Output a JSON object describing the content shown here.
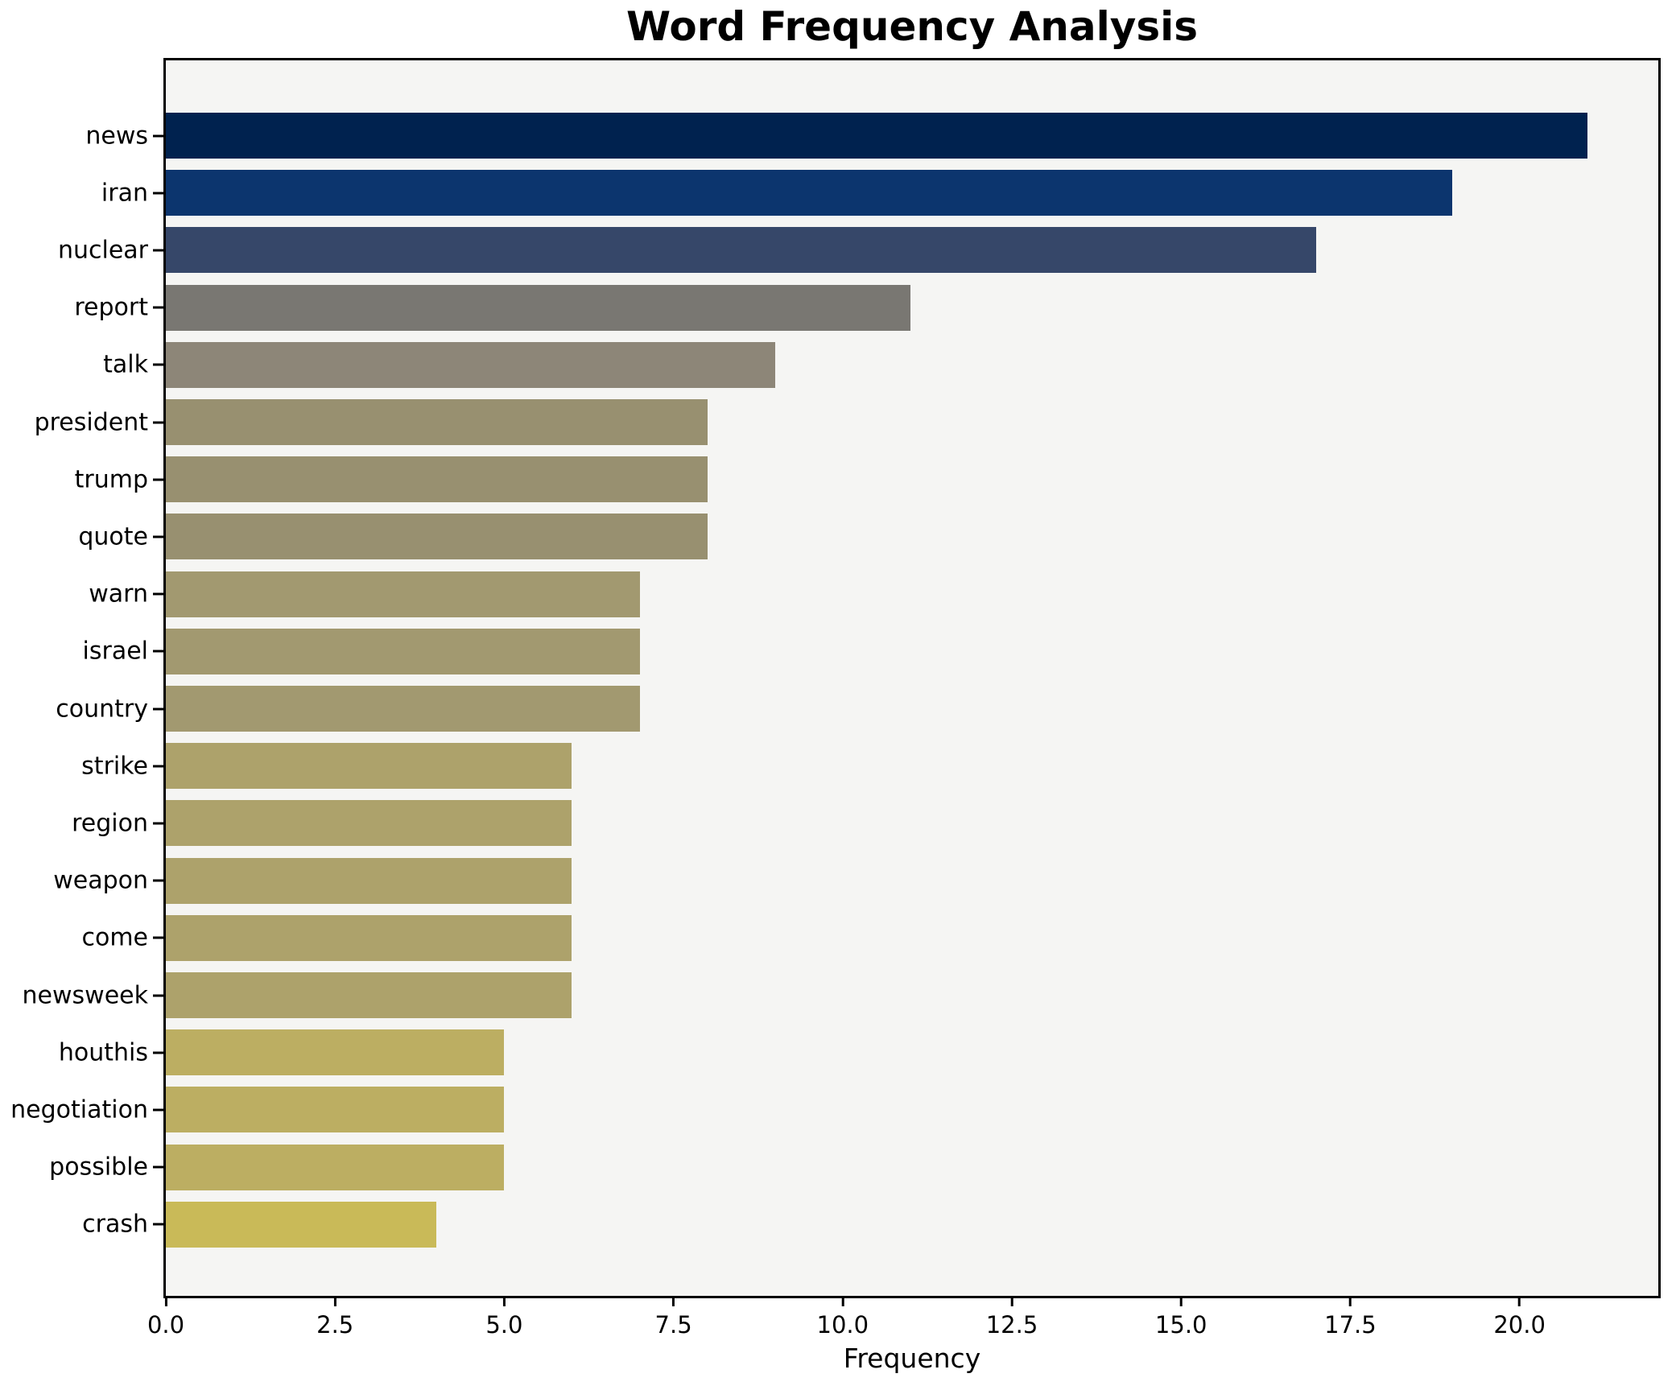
{
  "chart_data": {
    "type": "bar",
    "orientation": "horizontal",
    "title": "Word Frequency Analysis",
    "xlabel": "Frequency",
    "ylabel": "",
    "grid": false,
    "legend": false,
    "figure_bg": "#ffffff",
    "plot_bg": "#f5f5f3",
    "spine_color": "#000000",
    "text_color": "#000000",
    "xlim": [
      0,
      22.05
    ],
    "x_ticks": [
      {
        "label": "0.0",
        "value": 0
      },
      {
        "label": "2.5",
        "value": 2.5
      },
      {
        "label": "5.0",
        "value": 5
      },
      {
        "label": "7.5",
        "value": 7.5
      },
      {
        "label": "10.0",
        "value": 10
      },
      {
        "label": "12.5",
        "value": 12.5
      },
      {
        "label": "15.0",
        "value": 15
      },
      {
        "label": "17.5",
        "value": 17.5
      },
      {
        "label": "20.0",
        "value": 20
      }
    ],
    "categories": [
      "news",
      "iran",
      "nuclear",
      "report",
      "talk",
      "president",
      "trump",
      "quote",
      "warn",
      "israel",
      "country",
      "strike",
      "region",
      "weapon",
      "come",
      "newsweek",
      "houthis",
      "negotiation",
      "possible",
      "crash"
    ],
    "values": [
      21,
      19,
      17,
      11,
      9,
      8,
      8,
      8,
      7,
      7,
      7,
      6,
      6,
      6,
      6,
      6,
      5,
      5,
      5,
      4
    ],
    "bar_colors": [
      "#00224f",
      "#0c356e",
      "#364769",
      "#797772",
      "#8d8678",
      "#989070",
      "#989070",
      "#989070",
      "#a29970",
      "#a29970",
      "#a29970",
      "#ada26b",
      "#ada26b",
      "#ada26b",
      "#ada26b",
      "#ada26b",
      "#bcae62",
      "#bcae62",
      "#bcae62",
      "#c9ba58"
    ]
  }
}
